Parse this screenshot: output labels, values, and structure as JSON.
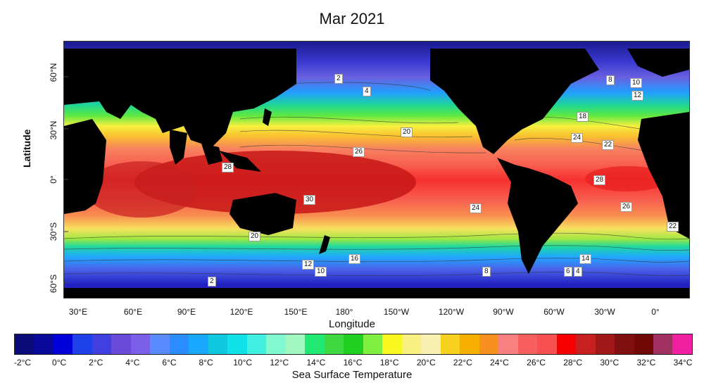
{
  "title": "Mar 2021",
  "y_axis_label": "Latitude",
  "x_axis_label": "Longitude",
  "colorbar_label": "Sea Surface Temperature",
  "lat_ticks": [
    "60°N",
    "30°N",
    "0°",
    "30°S",
    "60°S"
  ],
  "lon_ticks": [
    "30°E",
    "60°E",
    "90°E",
    "120°E",
    "150°E",
    "180°",
    "150°W",
    "120°W",
    "90°W",
    "60°W",
    "30°W",
    "0°"
  ],
  "colorbar_ticks": [
    "-2°C",
    "0°C",
    "2°C",
    "4°C",
    "6°C",
    "8°C",
    "10°C",
    "12°C",
    "14°C",
    "16°C",
    "18°C",
    "20°C",
    "22°C",
    "24°C",
    "26°C",
    "28°C",
    "30°C",
    "32°C",
    "34°C"
  ],
  "colorbar_colors": [
    "#0b0b7a",
    "#08089a",
    "#0000d8",
    "#1e40e8",
    "#4040e0",
    "#6a4ad8",
    "#7a60e8",
    "#5a8aff",
    "#2a8cff",
    "#1aa8ff",
    "#10c8e0",
    "#10e0e8",
    "#40f0e0",
    "#80f8d0",
    "#a0f8c0",
    "#20e870",
    "#40d840",
    "#20d020",
    "#80f040",
    "#f8f820",
    "#f8f080",
    "#f8f0b0",
    "#f8d020",
    "#f8b000",
    "#f89020",
    "#f88080",
    "#f86060",
    "#f85050",
    "#f80000",
    "#c82020",
    "#a01818",
    "#801010",
    "#700808",
    "#a03060",
    "#f020a0"
  ],
  "contour_labels": [
    "2",
    "4",
    "8",
    "10",
    "12",
    "18",
    "20",
    "24",
    "22",
    "26",
    "28",
    "28",
    "30",
    "24",
    "26",
    "22",
    "16",
    "14",
    "12",
    "10",
    "8",
    "6",
    "4",
    "2",
    "20"
  ],
  "colors": {
    "land": "#000000",
    "cold_ocean": "#2a2ab0",
    "warm_pool": "#c81818"
  }
}
